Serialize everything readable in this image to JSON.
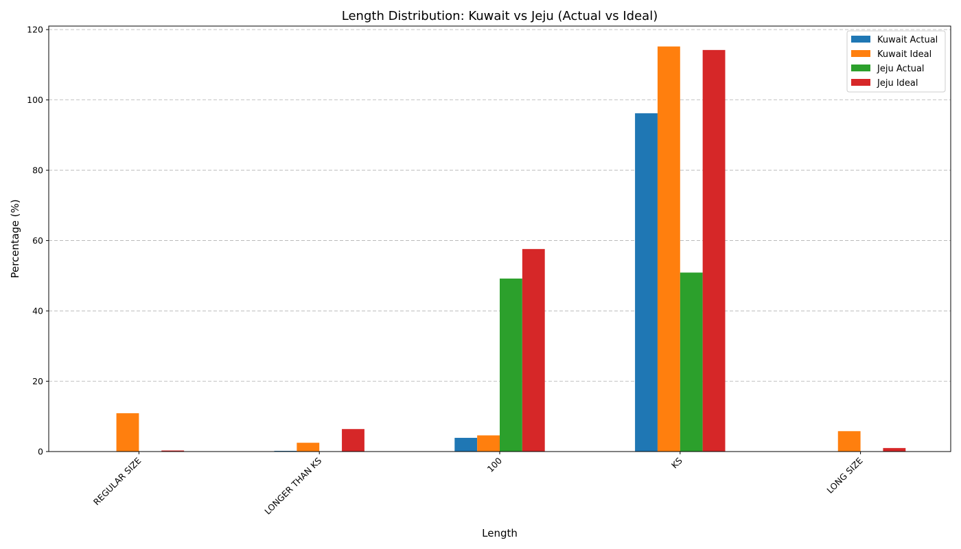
{
  "chart_data": {
    "type": "bar",
    "title": "Length Distribution: Kuwait vs Jeju (Actual vs Ideal)",
    "xlabel": "Length",
    "ylabel": "Percentage (%)",
    "categories": [
      "REGULAR SIZE",
      "LONGER THAN KS",
      "100",
      "KS",
      "LONG SIZE"
    ],
    "series": [
      {
        "name": "Kuwait Actual",
        "color": "#1f77b4",
        "values": [
          0,
          0.2,
          3.9,
          96.2,
          0
        ]
      },
      {
        "name": "Kuwait Ideal",
        "color": "#ff7f0e",
        "values": [
          10.9,
          2.5,
          4.6,
          115.2,
          5.8
        ]
      },
      {
        "name": "Jeju Actual",
        "color": "#2ca02c",
        "values": [
          0,
          0,
          49.2,
          50.9,
          0
        ]
      },
      {
        "name": "Jeju Ideal",
        "color": "#d62728",
        "values": [
          0.3,
          6.4,
          57.6,
          114.2,
          1.0
        ]
      }
    ],
    "ylim": [
      0,
      121
    ],
    "yticks": [
      0,
      20,
      40,
      60,
      80,
      100,
      120
    ],
    "grid": "y-dashed",
    "legend_position": "top-right"
  }
}
